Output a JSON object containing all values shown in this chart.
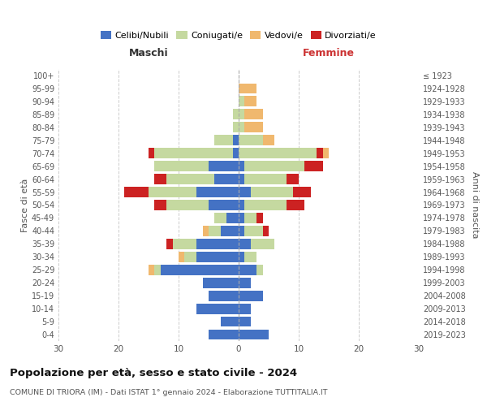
{
  "age_groups": [
    "0-4",
    "5-9",
    "10-14",
    "15-19",
    "20-24",
    "25-29",
    "30-34",
    "35-39",
    "40-44",
    "45-49",
    "50-54",
    "55-59",
    "60-64",
    "65-69",
    "70-74",
    "75-79",
    "80-84",
    "85-89",
    "90-94",
    "95-99",
    "100+"
  ],
  "birth_years": [
    "2019-2023",
    "2014-2018",
    "2009-2013",
    "2004-2008",
    "1999-2003",
    "1994-1998",
    "1989-1993",
    "1984-1988",
    "1979-1983",
    "1974-1978",
    "1969-1973",
    "1964-1968",
    "1959-1963",
    "1954-1958",
    "1949-1953",
    "1944-1948",
    "1939-1943",
    "1934-1938",
    "1929-1933",
    "1924-1928",
    "≤ 1923"
  ],
  "maschi": {
    "celibi": [
      5,
      3,
      7,
      5,
      6,
      13,
      7,
      7,
      3,
      2,
      5,
      7,
      4,
      5,
      1,
      1,
      0,
      0,
      0,
      0,
      0
    ],
    "coniugati": [
      0,
      0,
      0,
      0,
      0,
      1,
      2,
      4,
      2,
      2,
      7,
      8,
      8,
      9,
      13,
      3,
      1,
      1,
      0,
      0,
      0
    ],
    "vedovi": [
      0,
      0,
      0,
      0,
      0,
      1,
      1,
      0,
      1,
      0,
      0,
      0,
      0,
      0,
      0,
      0,
      0,
      0,
      0,
      0,
      0
    ],
    "divorziati": [
      0,
      0,
      0,
      0,
      0,
      0,
      0,
      1,
      0,
      0,
      2,
      4,
      2,
      0,
      1,
      0,
      0,
      0,
      0,
      0,
      0
    ]
  },
  "femmine": {
    "nubili": [
      5,
      2,
      2,
      4,
      2,
      3,
      1,
      2,
      1,
      1,
      1,
      2,
      1,
      1,
      0,
      0,
      0,
      0,
      0,
      0,
      0
    ],
    "coniugate": [
      0,
      0,
      0,
      0,
      0,
      1,
      2,
      4,
      3,
      2,
      7,
      7,
      7,
      10,
      13,
      4,
      1,
      1,
      1,
      0,
      0
    ],
    "vedove": [
      0,
      0,
      0,
      0,
      0,
      0,
      0,
      0,
      0,
      0,
      0,
      0,
      0,
      0,
      1,
      2,
      3,
      3,
      2,
      3,
      0
    ],
    "divorziate": [
      0,
      0,
      0,
      0,
      0,
      0,
      0,
      0,
      1,
      1,
      3,
      3,
      2,
      3,
      1,
      0,
      0,
      0,
      0,
      0,
      0
    ]
  },
  "colors": {
    "celibi_nubili": "#4472C4",
    "coniugati": "#C5D9A0",
    "vedovi": "#F0B86E",
    "divorziati": "#CC2222"
  },
  "xlim": 30,
  "title": "Popolazione per età, sesso e stato civile - 2024",
  "subtitle": "COMUNE DI TRIORA (IM) - Dati ISTAT 1° gennaio 2024 - Elaborazione TUTTITALIA.IT",
  "ylabel_left": "Fasce di età",
  "ylabel_right": "Anni di nascita",
  "xlabel_left": "Maschi",
  "xlabel_right": "Femmine",
  "background_color": "#ffffff"
}
